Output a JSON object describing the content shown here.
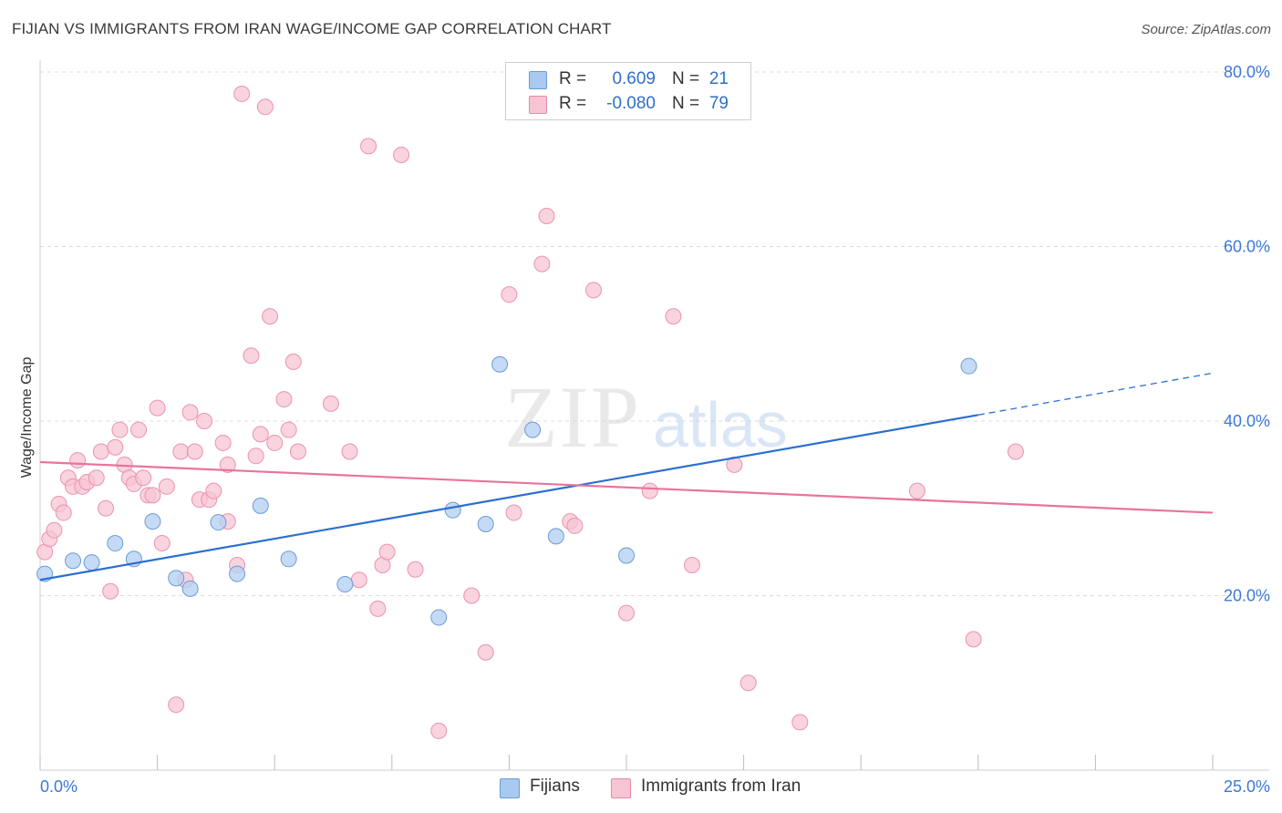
{
  "header": {
    "title": "FIJIAN VS IMMIGRANTS FROM IRAN WAGE/INCOME GAP CORRELATION CHART",
    "source": "Source: ZipAtlas.com"
  },
  "legend": {
    "rows": [
      {
        "r_label": "R =",
        "r_value": "0.609",
        "n_label": "N =",
        "n_value": "21",
        "color": "#a9c9f0",
        "border": "#6c9bd8"
      },
      {
        "r_label": "R =",
        "r_value": "-0.080",
        "n_label": "N =",
        "n_value": "79",
        "color": "#f7c4d3",
        "border": "#e58aa6"
      }
    ],
    "bottom": [
      {
        "label": "Fijians",
        "color": "#a9c9f0",
        "border": "#6c9bd8"
      },
      {
        "label": "Immigrants from Iran",
        "color": "#f7c4d3",
        "border": "#e58aa6"
      }
    ]
  },
  "watermark": {
    "zip": "ZIP",
    "atlas": "atlas"
  },
  "chart_data": {
    "type": "scatter",
    "title": "FIJIAN VS IMMIGRANTS FROM IRAN WAGE/INCOME GAP CORRELATION CHART",
    "xlabel": "",
    "ylabel": "Wage/Income Gap",
    "xlim": [
      0,
      25
    ],
    "ylim": [
      0,
      80
    ],
    "x_tick_labels": [
      "0.0%",
      "25.0%"
    ],
    "y_tick_labels": [
      "20.0%",
      "40.0%",
      "60.0%",
      "80.0%"
    ],
    "y_ticks": [
      20,
      40,
      60,
      80
    ],
    "grid": true,
    "legend_position": "top-center",
    "colors": {
      "fijians": "#6fa3e3",
      "iran": "#f09ab5",
      "fijians_line": "#2b6fd1",
      "iran_line": "#e8749b",
      "axis_text": "#3c78d8"
    },
    "series": [
      {
        "name": "Fijians",
        "points": [
          [
            0.1,
            22.5
          ],
          [
            0.7,
            24.0
          ],
          [
            1.1,
            23.8
          ],
          [
            1.6,
            26.0
          ],
          [
            2.0,
            24.2
          ],
          [
            2.4,
            28.5
          ],
          [
            2.9,
            22.0
          ],
          [
            3.2,
            20.8
          ],
          [
            3.8,
            28.4
          ],
          [
            4.2,
            22.5
          ],
          [
            4.7,
            30.3
          ],
          [
            5.3,
            24.2
          ],
          [
            6.5,
            21.3
          ],
          [
            8.5,
            17.5
          ],
          [
            8.8,
            29.8
          ],
          [
            9.5,
            28.2
          ],
          [
            9.8,
            46.5
          ],
          [
            10.5,
            39.0
          ],
          [
            11.0,
            26.8
          ],
          [
            12.5,
            24.6
          ],
          [
            19.8,
            46.3
          ]
        ],
        "trend": {
          "x0": 0,
          "y0": 21.8,
          "x1": 20.0,
          "y1": 40.7,
          "dashed_to_x": 25,
          "dashed_to_y": 45.5
        }
      },
      {
        "name": "Immigrants from Iran",
        "points": [
          [
            0.1,
            25.0
          ],
          [
            0.2,
            26.5
          ],
          [
            0.3,
            27.5
          ],
          [
            0.4,
            30.5
          ],
          [
            0.5,
            29.5
          ],
          [
            0.6,
            33.5
          ],
          [
            0.7,
            32.5
          ],
          [
            0.8,
            35.5
          ],
          [
            0.9,
            32.5
          ],
          [
            1.0,
            33.0
          ],
          [
            1.2,
            33.5
          ],
          [
            1.3,
            36.5
          ],
          [
            1.4,
            30.0
          ],
          [
            1.5,
            20.5
          ],
          [
            1.6,
            37.0
          ],
          [
            1.7,
            39.0
          ],
          [
            1.8,
            35.0
          ],
          [
            1.9,
            33.5
          ],
          [
            2.0,
            32.8
          ],
          [
            2.1,
            39.0
          ],
          [
            2.2,
            33.5
          ],
          [
            2.3,
            31.5
          ],
          [
            2.4,
            31.5
          ],
          [
            2.5,
            41.5
          ],
          [
            2.6,
            26.0
          ],
          [
            2.7,
            32.5
          ],
          [
            2.9,
            7.5
          ],
          [
            3.0,
            36.5
          ],
          [
            3.1,
            21.8
          ],
          [
            3.2,
            41.0
          ],
          [
            3.3,
            36.5
          ],
          [
            3.4,
            31.0
          ],
          [
            3.5,
            40.0
          ],
          [
            3.6,
            31.0
          ],
          [
            3.7,
            32.0
          ],
          [
            3.9,
            37.5
          ],
          [
            4.0,
            35.0
          ],
          [
            4.0,
            28.5
          ],
          [
            4.2,
            23.5
          ],
          [
            4.3,
            77.5
          ],
          [
            4.5,
            47.5
          ],
          [
            4.6,
            36.0
          ],
          [
            4.7,
            38.5
          ],
          [
            4.8,
            76.0
          ],
          [
            4.9,
            52.0
          ],
          [
            5.0,
            37.5
          ],
          [
            5.2,
            42.5
          ],
          [
            5.3,
            39.0
          ],
          [
            5.4,
            46.8
          ],
          [
            5.5,
            36.5
          ],
          [
            6.2,
            42.0
          ],
          [
            6.6,
            36.5
          ],
          [
            6.8,
            21.8
          ],
          [
            7.0,
            71.5
          ],
          [
            7.2,
            18.5
          ],
          [
            7.3,
            23.5
          ],
          [
            7.4,
            25.0
          ],
          [
            7.7,
            70.5
          ],
          [
            8.0,
            23.0
          ],
          [
            8.5,
            4.5
          ],
          [
            9.2,
            20.0
          ],
          [
            9.5,
            13.5
          ],
          [
            10.0,
            54.5
          ],
          [
            10.1,
            29.5
          ],
          [
            10.7,
            58.0
          ],
          [
            10.8,
            63.5
          ],
          [
            11.3,
            28.5
          ],
          [
            11.4,
            28.0
          ],
          [
            11.8,
            55.0
          ],
          [
            12.5,
            18.0
          ],
          [
            13.0,
            32.0
          ],
          [
            13.5,
            52.0
          ],
          [
            13.9,
            23.5
          ],
          [
            14.8,
            35.0
          ],
          [
            15.1,
            10.0
          ],
          [
            16.2,
            5.5
          ],
          [
            18.7,
            32.0
          ],
          [
            19.9,
            15.0
          ],
          [
            20.8,
            36.5
          ]
        ],
        "trend": {
          "x0": 0,
          "y0": 35.3,
          "x1": 25.0,
          "y1": 29.5
        }
      }
    ]
  }
}
